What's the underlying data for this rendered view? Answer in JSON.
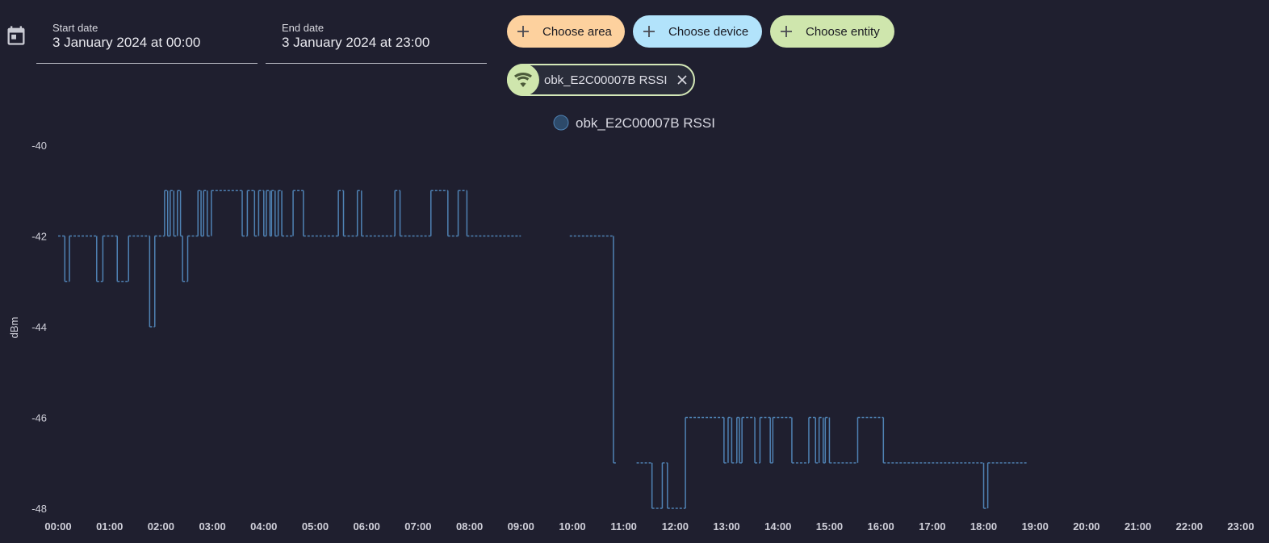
{
  "header": {
    "start_date": {
      "label": "Start date",
      "value": "3 January 2024 at 00:00"
    },
    "end_date": {
      "label": "End date",
      "value": "3 January 2024 at 23:00"
    },
    "chips": [
      {
        "label": "Choose area",
        "color": "#fdd19e"
      },
      {
        "label": "Choose device",
        "color": "#b2e3fb"
      },
      {
        "label": "Choose entity",
        "color": "#cfe6ad"
      }
    ],
    "selected_entity": {
      "label": "obk_E2C00007B RSSI",
      "icon": "wifi-icon"
    }
  },
  "colors": {
    "line": "#4f82b4",
    "legend_marker": "#2d4a6a"
  },
  "chart_data": {
    "type": "line",
    "step": true,
    "ylabel": "dBm",
    "xlabel": "",
    "ylim": [
      -48,
      -40
    ],
    "y_ticks": [
      "-40",
      "-42",
      "-44",
      "-46",
      "-48"
    ],
    "x_ticks": [
      "00:00",
      "01:00",
      "02:00",
      "03:00",
      "04:00",
      "05:00",
      "06:00",
      "07:00",
      "08:00",
      "09:00",
      "10:00",
      "11:00",
      "12:00",
      "13:00",
      "14:00",
      "15:00",
      "16:00",
      "17:00",
      "18:00",
      "19:00",
      "20:00",
      "21:00",
      "22:00",
      "23:00"
    ],
    "xlim_hours": [
      0,
      23
    ],
    "legend": {
      "position": "top-center"
    },
    "series": [
      {
        "name": "obk_E2C00007B RSSI",
        "segments": [
          [
            [
              0.0,
              -42
            ],
            [
              0.13,
              -43
            ],
            [
              0.22,
              -42
            ],
            [
              0.75,
              -43
            ],
            [
              0.87,
              -42
            ],
            [
              1.15,
              -43
            ],
            [
              1.37,
              -42
            ],
            [
              1.78,
              -44
            ],
            [
              1.88,
              -42
            ],
            [
              2.07,
              -41
            ],
            [
              2.13,
              -42
            ],
            [
              2.18,
              -41
            ],
            [
              2.25,
              -42
            ],
            [
              2.32,
              -41
            ],
            [
              2.38,
              -42
            ],
            [
              2.42,
              -43
            ],
            [
              2.52,
              -42
            ],
            [
              2.72,
              -41
            ],
            [
              2.78,
              -42
            ],
            [
              2.83,
              -41
            ],
            [
              2.9,
              -42
            ],
            [
              2.98,
              -41
            ],
            [
              3.58,
              -42
            ],
            [
              3.68,
              -41
            ],
            [
              3.82,
              -42
            ],
            [
              3.9,
              -41
            ],
            [
              4.0,
              -42
            ],
            [
              4.05,
              -41
            ],
            [
              4.12,
              -42
            ],
            [
              4.15,
              -41
            ],
            [
              4.22,
              -42
            ],
            [
              4.28,
              -41
            ],
            [
              4.35,
              -42
            ],
            [
              4.57,
              -41
            ],
            [
              4.77,
              -42
            ],
            [
              5.45,
              -41
            ],
            [
              5.55,
              -42
            ],
            [
              5.82,
              -41
            ],
            [
              5.9,
              -42
            ],
            [
              6.55,
              -41
            ],
            [
              6.65,
              -42
            ],
            [
              7.25,
              -41
            ],
            [
              7.58,
              -42
            ],
            [
              7.78,
              -41
            ],
            [
              7.95,
              -42
            ],
            [
              9.0,
              -42
            ]
          ],
          [
            [
              9.95,
              -42
            ],
            [
              10.8,
              -47
            ],
            [
              10.85,
              -47
            ]
          ],
          [
            [
              11.25,
              -47
            ],
            [
              11.55,
              -48
            ],
            [
              11.75,
              -47
            ],
            [
              11.85,
              -48
            ],
            [
              12.2,
              -46
            ],
            [
              12.95,
              -47
            ],
            [
              13.03,
              -46
            ],
            [
              13.1,
              -47
            ],
            [
              13.2,
              -46
            ],
            [
              13.25,
              -47
            ],
            [
              13.3,
              -46
            ],
            [
              13.55,
              -47
            ],
            [
              13.65,
              -46
            ],
            [
              13.85,
              -47
            ],
            [
              13.9,
              -46
            ],
            [
              14.27,
              -47
            ],
            [
              14.6,
              -46
            ],
            [
              14.73,
              -47
            ],
            [
              14.8,
              -46
            ],
            [
              14.88,
              -47
            ],
            [
              14.92,
              -46
            ],
            [
              15.0,
              -47
            ],
            [
              15.55,
              -46
            ],
            [
              16.05,
              -47
            ],
            [
              18.0,
              -48
            ],
            [
              18.08,
              -47
            ],
            [
              18.85,
              -47
            ]
          ]
        ]
      }
    ]
  }
}
